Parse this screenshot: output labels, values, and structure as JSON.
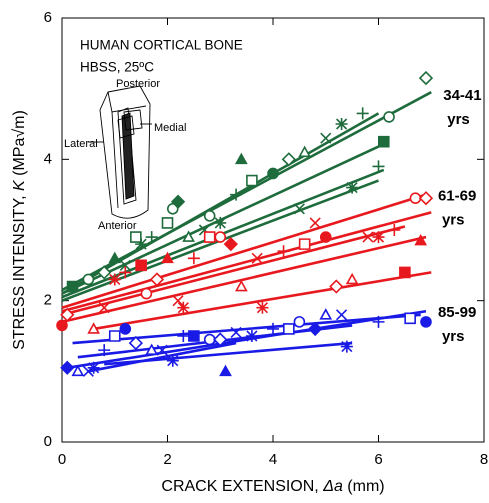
{
  "chart_data": {
    "type": "scatter",
    "annotations": [
      "HUMAN CORTICAL BONE",
      "HBSS, 25ºC",
      "Posterior",
      "Lateral",
      "Medial",
      "Anterior"
    ],
    "x_label": [
      "CRACK EXTENSION, ",
      "Δa",
      " (mm)"
    ],
    "y_label": [
      "STRESS INTENSITY, ",
      "K",
      " (MPa√m)"
    ],
    "xlim": [
      0,
      8
    ],
    "ylim": [
      0,
      6
    ],
    "xticks": [
      0,
      2,
      4,
      6,
      8
    ],
    "yticks": [
      0,
      2,
      4,
      6
    ],
    "markers": [
      "square",
      "circle",
      "diamond",
      "triangle",
      "x",
      "star",
      "plus"
    ],
    "series": [
      {
        "label": [
          "34-41",
          "yrs"
        ],
        "color": "#1e6b3c",
        "x": [
          0.2,
          0.5,
          0.8,
          1.0,
          1.2,
          1.5,
          1.7,
          2.0,
          2.1,
          2.2,
          2.4,
          2.7,
          3.0,
          3.3,
          3.6,
          4.0,
          4.3,
          4.6,
          5.0,
          5.3,
          5.7,
          6.1,
          6.2,
          6.9,
          3.4,
          4.5,
          5.5,
          6.0,
          1.4,
          2.8
        ],
        "values": [
          2.2,
          2.3,
          2.4,
          2.6,
          2.5,
          2.8,
          2.9,
          3.1,
          3.3,
          3.4,
          2.9,
          3.0,
          3.1,
          3.5,
          3.7,
          3.8,
          4.0,
          4.1,
          4.3,
          4.5,
          4.65,
          4.25,
          4.6,
          5.15,
          4.0,
          3.3,
          3.6,
          3.9,
          2.9,
          3.2
        ],
        "fits": [
          {
            "x": [
              0,
              7
            ],
            "values": [
              2.15,
              4.95
            ]
          },
          {
            "x": [
              0,
              6
            ],
            "values": [
              2.1,
              4.65
            ]
          },
          {
            "x": [
              0,
              6.2
            ],
            "values": [
              2.1,
              4.25
            ]
          },
          {
            "x": [
              0,
              6.1
            ],
            "values": [
              2.05,
              3.85
            ]
          },
          {
            "x": [
              0,
              6
            ],
            "values": [
              2.0,
              3.7
            ]
          }
        ]
      },
      {
        "label": [
          "61-69",
          "yrs"
        ],
        "color": "#e8191e",
        "x": [
          0,
          0.1,
          0.6,
          0.8,
          1.0,
          1.2,
          1.5,
          1.6,
          1.8,
          2.0,
          2.2,
          2.3,
          2.5,
          2.8,
          3.0,
          3.2,
          3.4,
          3.7,
          3.8,
          4.2,
          4.6,
          5.0,
          5.2,
          5.5,
          5.8,
          6.0,
          6.3,
          6.5,
          6.7,
          6.9,
          6.8,
          4.8
        ],
        "values": [
          1.65,
          1.8,
          1.6,
          1.9,
          2.3,
          2.4,
          2.5,
          2.1,
          2.3,
          2.6,
          2.0,
          1.9,
          2.6,
          2.9,
          2.9,
          2.8,
          2.2,
          2.6,
          1.9,
          2.7,
          2.8,
          2.9,
          2.2,
          2.3,
          2.9,
          2.9,
          3.0,
          2.4,
          3.45,
          3.45,
          2.85,
          3.1
        ],
        "fits": [
          {
            "x": [
              0,
              6.9
            ],
            "values": [
              1.9,
              3.5
            ]
          },
          {
            "x": [
              0,
              7
            ],
            "values": [
              1.85,
              3.25
            ]
          },
          {
            "x": [
              0,
              6.5
            ],
            "values": [
              1.8,
              3.05
            ]
          },
          {
            "x": [
              0,
              6.9
            ],
            "values": [
              1.7,
              2.9
            ]
          },
          {
            "x": [
              0.6,
              7
            ],
            "values": [
              1.6,
              2.4
            ]
          }
        ]
      },
      {
        "label": [
          "85-99",
          "yrs"
        ],
        "color": "#1a1ae6",
        "x": [
          0.1,
          0.3,
          0.5,
          0.6,
          0.8,
          1.0,
          1.2,
          1.4,
          1.7,
          1.9,
          2.1,
          2.3,
          2.5,
          2.8,
          3.0,
          3.1,
          3.3,
          3.6,
          4.0,
          4.3,
          4.5,
          4.8,
          5.0,
          5.3,
          5.4,
          6.0,
          6.6,
          6.9
        ],
        "values": [
          1.05,
          1.0,
          1.0,
          1.05,
          1.3,
          1.5,
          1.6,
          1.4,
          1.3,
          1.3,
          1.15,
          1.5,
          1.5,
          1.45,
          1.45,
          1.0,
          1.55,
          1.5,
          1.6,
          1.6,
          1.7,
          1.6,
          1.8,
          1.8,
          1.35,
          1.7,
          1.75,
          1.7
        ],
        "fits": [
          {
            "x": [
              0.1,
              6.9
            ],
            "values": [
              1.05,
              1.85
            ]
          },
          {
            "x": [
              0.2,
              6.8
            ],
            "values": [
              1.4,
              1.8
            ]
          },
          {
            "x": [
              0.3,
              5.5
            ],
            "values": [
              1.2,
              1.65
            ]
          },
          {
            "x": [
              0.5,
              3.3
            ],
            "values": [
              1.0,
              1.4
            ]
          },
          {
            "x": [
              0.8,
              5.5
            ],
            "values": [
              1.1,
              1.4
            ]
          }
        ]
      }
    ]
  }
}
